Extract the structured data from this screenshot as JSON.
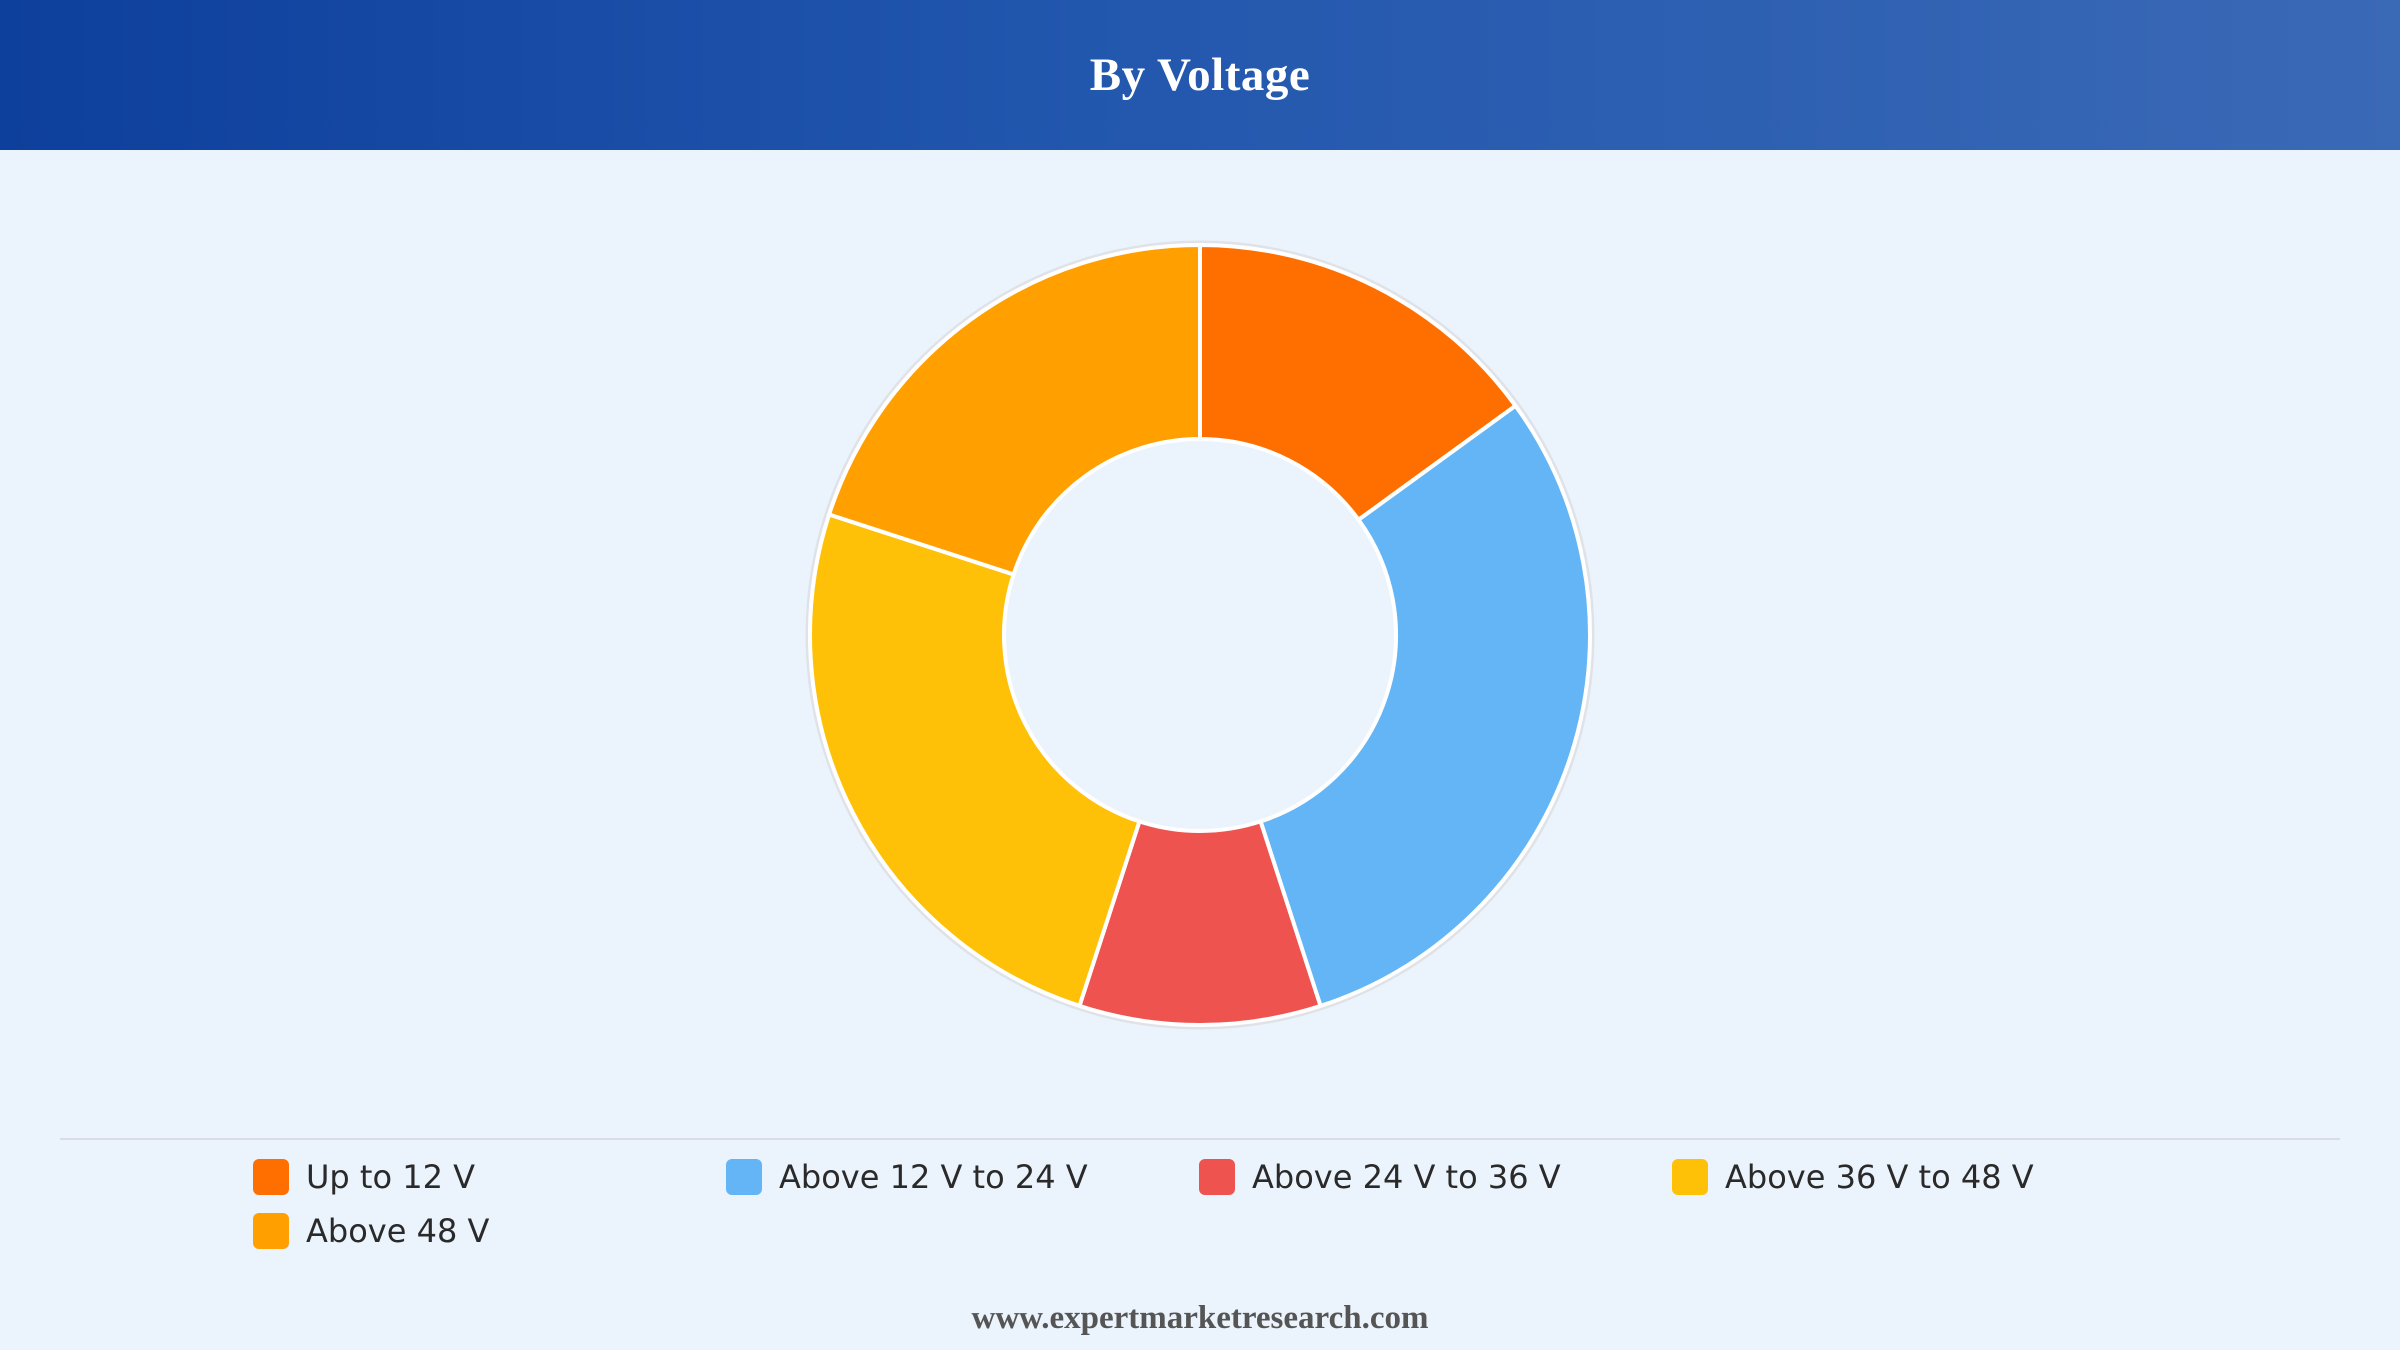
{
  "header": {
    "title": "By Voltage"
  },
  "chart_data": {
    "type": "pie",
    "donut": true,
    "title": "By Voltage",
    "categories": [
      "Up to 12 V",
      "Above 12 V to 24 V",
      "Above 24 V to 36 V",
      "Above 36 V to 48 V",
      "Above 48 V"
    ],
    "values": [
      15,
      30,
      10,
      25,
      20
    ],
    "colors": [
      "#ff6f00",
      "#64b5f6",
      "#ef5350",
      "#ffc107",
      "#ffa000"
    ],
    "legend_position": "bottom"
  },
  "legend": {
    "items": [
      {
        "label": "Up to 12 V",
        "color": "#ff6f00"
      },
      {
        "label": "Above 12 V to 24 V",
        "color": "#64b5f6"
      },
      {
        "label": "Above 24 V to 36 V",
        "color": "#ef5350"
      },
      {
        "label": "Above 36 V to 48 V",
        "color": "#ffc107"
      },
      {
        "label": "Above 48 V",
        "color": "#ffa000"
      }
    ]
  },
  "footer": {
    "text": "www.expertmarketresearch.com"
  }
}
